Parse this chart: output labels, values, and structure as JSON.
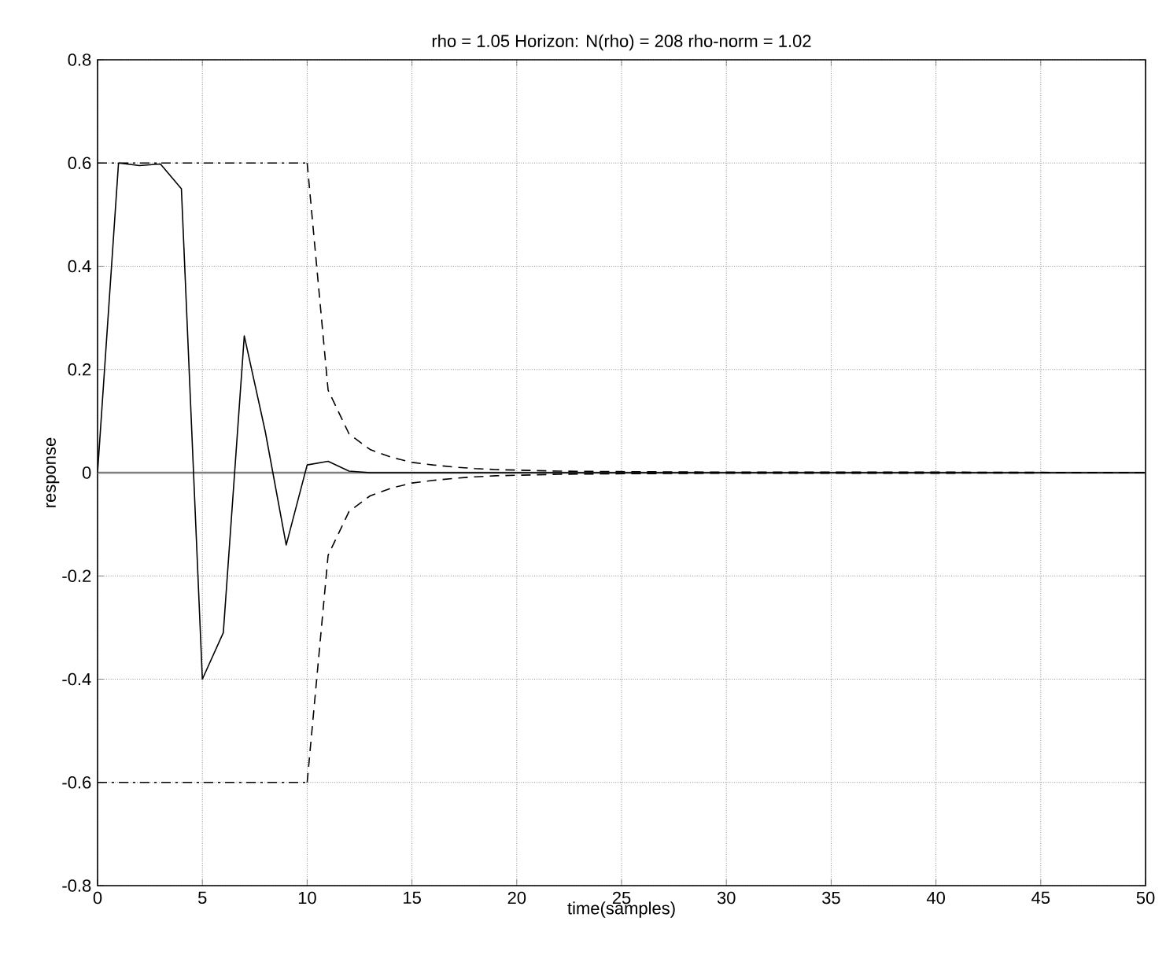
{
  "chart_data": {
    "type": "line",
    "title": "rho = 1.05      Horizon: N(rho) =  208       rho-norm = 1.02",
    "xlabel": "time(samples)",
    "ylabel": "response",
    "xlim": [
      0,
      50
    ],
    "ylim": [
      -0.8,
      0.8
    ],
    "xticks": [
      0,
      5,
      10,
      15,
      20,
      25,
      30,
      35,
      40,
      45,
      50
    ],
    "yticks": [
      -0.8,
      -0.6,
      -0.4,
      -0.2,
      0,
      0.2,
      0.4,
      0.6,
      0.8
    ],
    "grid": true,
    "ref_lines": [
      {
        "axis": "y",
        "value": 0,
        "color": "#808080",
        "line_style": "solid"
      }
    ],
    "series": [
      {
        "color": "#000000",
        "line_style": "solid",
        "x": [
          0,
          1,
          2,
          3,
          4,
          5,
          6,
          7,
          8,
          9,
          10,
          11,
          12,
          13,
          20,
          30,
          40,
          50
        ],
        "values": [
          0,
          0.6,
          0.595,
          0.598,
          0.55,
          -0.4,
          -0.31,
          0.265,
          0.08,
          -0.14,
          0.015,
          0.022,
          0.003,
          0,
          0,
          0,
          0,
          0
        ]
      },
      {
        "color": "#000000",
        "line_style": "dashdot",
        "x": [
          0,
          10
        ],
        "values": [
          0.6,
          0.6
        ]
      },
      {
        "color": "#000000",
        "line_style": "dashdot",
        "x": [
          0,
          10
        ],
        "values": [
          -0.6,
          -0.6
        ]
      },
      {
        "color": "#000000",
        "line_style": "dashed",
        "x": [
          10,
          11,
          12,
          13,
          14,
          15,
          16,
          17,
          18,
          19,
          20,
          22,
          25,
          30,
          40,
          50
        ],
        "values": [
          0.6,
          0.16,
          0.075,
          0.045,
          0.03,
          0.02,
          0.015,
          0.011,
          0.008,
          0.006,
          0.005,
          0.003,
          0.002,
          0.001,
          0.001,
          0
        ]
      },
      {
        "color": "#000000",
        "line_style": "dashed",
        "x": [
          10,
          11,
          12,
          13,
          14,
          15,
          16,
          17,
          18,
          19,
          20,
          22,
          25,
          30,
          40,
          50
        ],
        "values": [
          -0.6,
          -0.16,
          -0.075,
          -0.045,
          -0.03,
          -0.02,
          -0.015,
          -0.011,
          -0.008,
          -0.006,
          -0.005,
          -0.003,
          -0.002,
          -0.001,
          -0.001,
          0
        ]
      }
    ]
  }
}
